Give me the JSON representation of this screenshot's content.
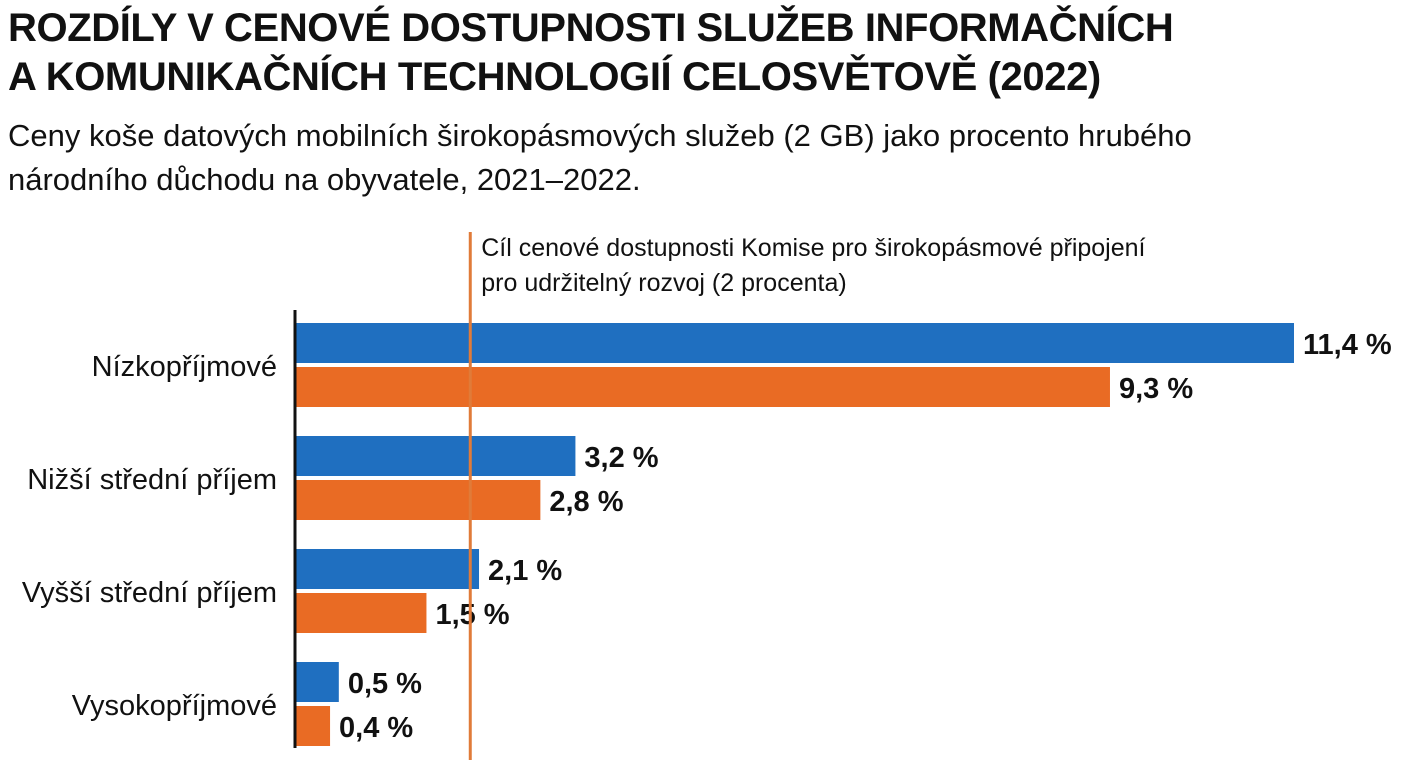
{
  "title_line1": "ROZDÍLY V CENOVÉ DOSTUPNOSTI SLUŽEB INFORMAČNÍCH",
  "title_line2": "A KOMUNIKAČNÍCH TECHNOLOGIÍ CELOSVĚTOVĚ (2022)",
  "subtitle_line1": "Ceny koše datových mobilních širokopásmových služeb (2 GB) jako procento hrubého",
  "subtitle_line2": "národního důchodu na obyvatele, 2021–2022.",
  "colors": {
    "series_a": "#1f6fc0",
    "series_b": "#e96b24",
    "target_line": "#e07b39",
    "text": "#111111"
  },
  "chart_data": {
    "type": "bar",
    "orientation": "horizontal",
    "categories": [
      "Nízkopříjmové",
      "Nižší střední příjem",
      "Vyšší střední příjem",
      "Vysokopříjmové"
    ],
    "series": [
      {
        "values": [
          11.4,
          3.2,
          2.1,
          0.5
        ],
        "labels": [
          "11,4 %",
          "3,2 %",
          "2,1 %",
          "0,5 %"
        ]
      },
      {
        "values": [
          9.3,
          2.8,
          1.5,
          0.4
        ],
        "labels": [
          "9,3 %",
          "2,8 %",
          "1,5 %",
          "0,4 %"
        ]
      }
    ],
    "reference_line": {
      "value": 2,
      "label_line1": "Cíl cenové dostupnosti Komise pro širokopásmové připojení",
      "label_line2": "pro udržitelný rozvoj (2 procenta)"
    },
    "xlim": [
      0,
      11.4
    ],
    "grid": false,
    "legend": "none"
  }
}
